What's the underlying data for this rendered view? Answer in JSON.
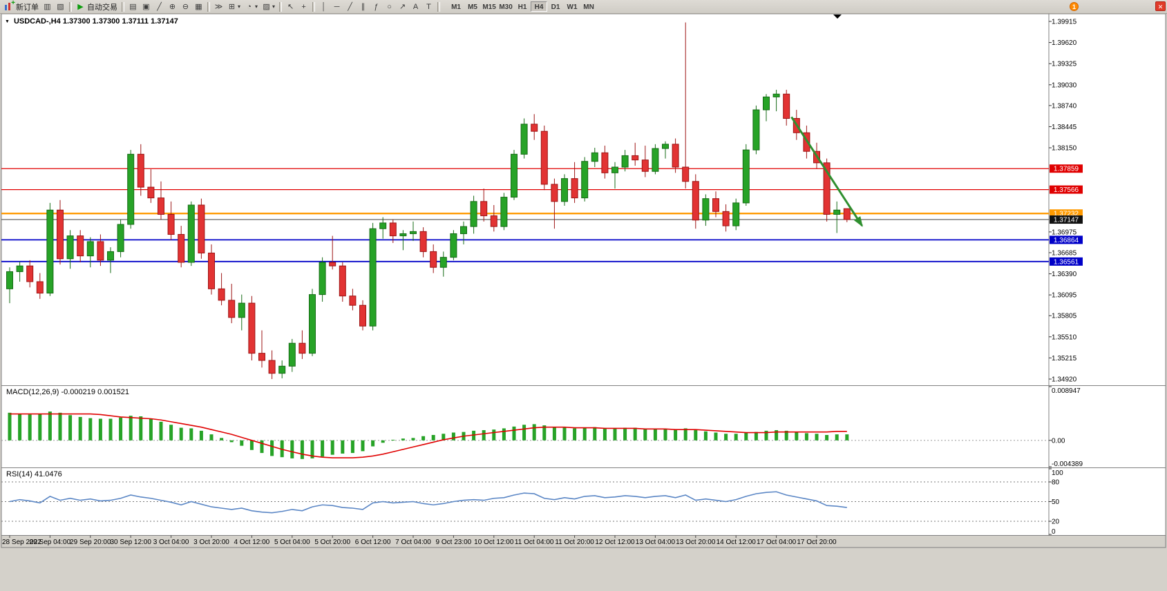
{
  "window": {
    "close_glyph": "✕"
  },
  "toolbar": {
    "new_order_plus_glyph": "+",
    "dropdown_glyph": "▾",
    "notification_badge": "1",
    "timeframes": [
      "M1",
      "M5",
      "M15",
      "M30",
      "H1",
      "H4",
      "D1",
      "W1",
      "MN"
    ],
    "active_timeframe": "H4",
    "buttons": [
      {
        "name": "new-order-button",
        "icon": "new-order",
        "label": "新订单"
      },
      {
        "name": "charts-window-button",
        "glyph": "▥"
      },
      {
        "name": "profiles-button",
        "glyph": "▧"
      },
      {
        "sep": 1
      },
      {
        "name": "auto-trading-button",
        "glyph": "▶",
        "glyph_color": "#0f9d0f",
        "label": "自动交易"
      },
      {
        "sep": 1
      },
      {
        "name": "bar-chart-button",
        "glyph": "▤"
      },
      {
        "name": "candlestick-button",
        "glyph": "▣"
      },
      {
        "name": "line-chart-button",
        "glyph": "╱"
      },
      {
        "name": "zoom-in-button",
        "glyph": "⊕"
      },
      {
        "name": "zoom-out-button",
        "glyph": "⊖"
      },
      {
        "name": "tile-windows-button",
        "glyph": "▦"
      },
      {
        "sep": 1
      },
      {
        "name": "step-forward-button",
        "glyph": "≫"
      },
      {
        "name": "indicators-button",
        "glyph": "⊞",
        "dd": 1
      },
      {
        "name": "periods-button",
        "glyph": "◔",
        "dd": 1
      },
      {
        "name": "templates-button",
        "glyph": "▨",
        "dd": 1
      },
      {
        "sep": 1
      },
      {
        "name": "cursor-button",
        "glyph": "↖"
      },
      {
        "name": "crosshair-button",
        "glyph": "+"
      },
      {
        "sep": 1
      },
      {
        "name": "vline-button",
        "glyph": "│"
      },
      {
        "name": "hline-button",
        "glyph": "─"
      },
      {
        "name": "trendline-button",
        "glyph": "╱"
      },
      {
        "name": "channel-button",
        "glyph": "∥"
      },
      {
        "name": "fibonacci-button",
        "glyph": "ƒ"
      },
      {
        "name": "shapes-button",
        "glyph": "○"
      },
      {
        "name": "arrows-button",
        "glyph": "↗"
      },
      {
        "name": "text-button",
        "glyph": "A"
      },
      {
        "name": "label-button",
        "glyph": "T"
      },
      {
        "sep": 1
      }
    ]
  },
  "chart": {
    "marker_glyph": "▼",
    "symbol_header": "USDCAD-,H4 1.37300 1.37300 1.37111 1.37147",
    "price_axis_max": 1.39915,
    "price_axis_min": 1.3492,
    "price_axis": [
      "1.39915",
      "1.39620",
      "1.39325",
      "1.39030",
      "1.38740",
      "1.38445",
      "1.38150",
      "1.36975",
      "1.36685",
      "1.36390",
      "1.36095",
      "1.35805",
      "1.35510",
      "1.35215",
      "1.34920"
    ],
    "hlines": [
      {
        "value": "1.37859",
        "color": "#e00000",
        "width": 1.2
      },
      {
        "value": "1.37566",
        "color": "#e00000",
        "width": 1.2
      },
      {
        "value": "1.37232",
        "color": "#ff9a00",
        "width": 2.4
      },
      {
        "value": "1.36864",
        "color": "#0000c8",
        "width": 1.8
      },
      {
        "value": "1.36561",
        "color": "#0000c8",
        "width": 1.8
      }
    ],
    "current_price": "1.37147",
    "colors": {
      "up_fill": "#27a327",
      "up_stroke": "#156b15",
      "down_fill": "#e23333",
      "down_stroke": "#9c1414",
      "macd_bar": "#27a327",
      "macd_signal": "#e00000",
      "rsi_line": "#5a86c5",
      "price_line": "#3c3c3c"
    },
    "arrow": {
      "from_index": 77.5,
      "from_price": 1.3858,
      "to_index": 84.5,
      "to_price": 1.3706,
      "color": "#2f8f2f"
    },
    "candles": [
      [
        1.3618,
        1.3648,
        1.3598,
        1.3642
      ],
      [
        1.3642,
        1.3656,
        1.3628,
        1.365
      ],
      [
        1.365,
        1.3658,
        1.362,
        1.3628
      ],
      [
        1.3628,
        1.364,
        1.3604,
        1.3612
      ],
      [
        1.3612,
        1.3738,
        1.3608,
        1.3728
      ],
      [
        1.3728,
        1.3742,
        1.3652,
        1.366
      ],
      [
        1.366,
        1.37,
        1.3646,
        1.3692
      ],
      [
        1.3692,
        1.37,
        1.3655,
        1.3664
      ],
      [
        1.3664,
        1.369,
        1.3648,
        1.3684
      ],
      [
        1.3684,
        1.3694,
        1.365,
        1.3658
      ],
      [
        1.3658,
        1.3676,
        1.364,
        1.367
      ],
      [
        1.367,
        1.3715,
        1.3662,
        1.3708
      ],
      [
        1.3708,
        1.3812,
        1.3702,
        1.3806
      ],
      [
        1.3806,
        1.382,
        1.3748,
        1.376
      ],
      [
        1.376,
        1.3785,
        1.3738,
        1.3745
      ],
      [
        1.3745,
        1.3768,
        1.3715,
        1.3722
      ],
      [
        1.3722,
        1.374,
        1.3686,
        1.3694
      ],
      [
        1.3694,
        1.3706,
        1.3648,
        1.3655
      ],
      [
        1.3655,
        1.374,
        1.365,
        1.3735
      ],
      [
        1.3735,
        1.3744,
        1.366,
        1.3668
      ],
      [
        1.3668,
        1.368,
        1.361,
        1.3618
      ],
      [
        1.3618,
        1.364,
        1.3595,
        1.3602
      ],
      [
        1.3602,
        1.3625,
        1.357,
        1.3578
      ],
      [
        1.3578,
        1.361,
        1.356,
        1.3598
      ],
      [
        1.3598,
        1.3608,
        1.3518,
        1.3528
      ],
      [
        1.3528,
        1.356,
        1.3508,
        1.3518
      ],
      [
        1.3518,
        1.3532,
        1.3492,
        1.35
      ],
      [
        1.35,
        1.3518,
        1.3493,
        1.351
      ],
      [
        1.351,
        1.3548,
        1.3502,
        1.3542
      ],
      [
        1.3542,
        1.356,
        1.352,
        1.3528
      ],
      [
        1.3528,
        1.3618,
        1.3524,
        1.361
      ],
      [
        1.361,
        1.3662,
        1.36,
        1.3655
      ],
      [
        1.3655,
        1.3692,
        1.3645,
        1.365
      ],
      [
        1.365,
        1.3655,
        1.36,
        1.3608
      ],
      [
        1.3608,
        1.3618,
        1.3588,
        1.3595
      ],
      [
        1.3595,
        1.3602,
        1.356,
        1.3566
      ],
      [
        1.3566,
        1.371,
        1.356,
        1.3702
      ],
      [
        1.3702,
        1.3718,
        1.3688,
        1.371
      ],
      [
        1.371,
        1.3715,
        1.3682,
        1.3692
      ],
      [
        1.3692,
        1.37,
        1.3672,
        1.3695
      ],
      [
        1.3695,
        1.3712,
        1.3685,
        1.3698
      ],
      [
        1.3698,
        1.3704,
        1.3662,
        1.367
      ],
      [
        1.367,
        1.368,
        1.364,
        1.3648
      ],
      [
        1.3648,
        1.367,
        1.3635,
        1.3662
      ],
      [
        1.3662,
        1.37,
        1.3658,
        1.3695
      ],
      [
        1.3695,
        1.3712,
        1.368,
        1.3705
      ],
      [
        1.3705,
        1.3748,
        1.3695,
        1.374
      ],
      [
        1.374,
        1.3758,
        1.3712,
        1.372
      ],
      [
        1.372,
        1.3735,
        1.3698,
        1.3705
      ],
      [
        1.3705,
        1.3752,
        1.37,
        1.3746
      ],
      [
        1.3746,
        1.3812,
        1.3742,
        1.3806
      ],
      [
        1.3806,
        1.3856,
        1.38,
        1.3848
      ],
      [
        1.3848,
        1.3862,
        1.3826,
        1.3838
      ],
      [
        1.3838,
        1.3846,
        1.3756,
        1.3764
      ],
      [
        1.3764,
        1.3772,
        1.3702,
        1.374
      ],
      [
        1.374,
        1.3778,
        1.3734,
        1.3772
      ],
      [
        1.3772,
        1.3795,
        1.3738,
        1.3745
      ],
      [
        1.3745,
        1.3802,
        1.374,
        1.3796
      ],
      [
        1.3796,
        1.3815,
        1.3788,
        1.3808
      ],
      [
        1.3808,
        1.3818,
        1.3772,
        1.378
      ],
      [
        1.378,
        1.3795,
        1.3758,
        1.3788
      ],
      [
        1.3788,
        1.3812,
        1.3782,
        1.3804
      ],
      [
        1.3804,
        1.3822,
        1.379,
        1.3798
      ],
      [
        1.3798,
        1.3818,
        1.3774,
        1.3782
      ],
      [
        1.3782,
        1.382,
        1.3778,
        1.3814
      ],
      [
        1.3814,
        1.3824,
        1.38,
        1.382
      ],
      [
        1.382,
        1.3828,
        1.378,
        1.3788
      ],
      [
        1.3788,
        1.399,
        1.3758,
        1.3768
      ],
      [
        1.3768,
        1.3778,
        1.3702,
        1.3714
      ],
      [
        1.3714,
        1.375,
        1.3706,
        1.3744
      ],
      [
        1.3744,
        1.3754,
        1.3718,
        1.3726
      ],
      [
        1.3726,
        1.3736,
        1.3698,
        1.3706
      ],
      [
        1.3706,
        1.3744,
        1.37,
        1.3738
      ],
      [
        1.3738,
        1.382,
        1.3734,
        1.3812
      ],
      [
        1.3812,
        1.3874,
        1.3806,
        1.3868
      ],
      [
        1.3868,
        1.389,
        1.3852,
        1.3886
      ],
      [
        1.3886,
        1.3896,
        1.3866,
        1.389
      ],
      [
        1.389,
        1.3896,
        1.3846,
        1.3856
      ],
      [
        1.3856,
        1.3868,
        1.3826,
        1.3836
      ],
      [
        1.3836,
        1.3846,
        1.38,
        1.381
      ],
      [
        1.381,
        1.3822,
        1.3786,
        1.3794
      ],
      [
        1.3794,
        1.38,
        1.3712,
        1.3722
      ],
      [
        1.3722,
        1.374,
        1.3696,
        1.3728
      ],
      [
        1.373,
        1.373,
        1.37111,
        1.37147
      ]
    ]
  },
  "macd": {
    "header": "MACD(12,26,9) -0.000219 0.001521",
    "max": 0.008947,
    "min": -0.004389,
    "axis": [
      "0.008947",
      "0.00",
      "-0.004389"
    ],
    "histogram": [
      0.0046,
      0.0044,
      0.0043,
      0.0044,
      0.0048,
      0.0046,
      0.0042,
      0.0039,
      0.0037,
      0.0036,
      0.0036,
      0.0038,
      0.0041,
      0.004,
      0.0036,
      0.0031,
      0.0026,
      0.0021,
      0.002,
      0.0016,
      0.001,
      0.0004,
      -0.0003,
      -0.0009,
      -0.0016,
      -0.0021,
      -0.0026,
      -0.0028,
      -0.003,
      -0.0031,
      -0.003,
      -0.0027,
      -0.0024,
      -0.0022,
      -0.0021,
      -0.0018,
      -0.001,
      -0.0004,
      0.0001,
      0.0003,
      0.0004,
      0.0007,
      0.0009,
      0.0011,
      0.0013,
      0.0014,
      0.0016,
      0.0017,
      0.0018,
      0.002,
      0.0023,
      0.0026,
      0.0027,
      0.0025,
      0.0022,
      0.0021,
      0.002,
      0.0021,
      0.0022,
      0.002,
      0.002,
      0.0021,
      0.0021,
      0.0019,
      0.0019,
      0.0019,
      0.0018,
      0.002,
      0.0017,
      0.0015,
      0.0013,
      0.0011,
      0.0011,
      0.0013,
      0.0014,
      0.0016,
      0.0017,
      0.0016,
      0.0014,
      0.0012,
      0.0011,
      0.0009,
      0.001,
      0.001
    ],
    "signal": [
      0.0044,
      0.0044,
      0.0044,
      0.0044,
      0.0044,
      0.0044,
      0.0044,
      0.0044,
      0.0044,
      0.0043,
      0.0041,
      0.0039,
      0.0038,
      0.0037,
      0.0036,
      0.0034,
      0.0031,
      0.0028,
      0.0025,
      0.0022,
      0.0018,
      0.0014,
      0.001,
      0.0005,
      0.0,
      -0.0005,
      -0.001,
      -0.0015,
      -0.0019,
      -0.0023,
      -0.0026,
      -0.0028,
      -0.0029,
      -0.0029,
      -0.0029,
      -0.0028,
      -0.0026,
      -0.0023,
      -0.0019,
      -0.0015,
      -0.0011,
      -0.0007,
      -0.0003,
      0.0001,
      0.0004,
      0.0007,
      0.0009,
      0.0011,
      0.0013,
      0.0015,
      0.0017,
      0.0019,
      0.0021,
      0.0022,
      0.0022,
      0.0022,
      0.0021,
      0.0021,
      0.0021,
      0.002,
      0.002,
      0.002,
      0.002,
      0.0019,
      0.0019,
      0.0019,
      0.0018,
      0.0018,
      0.0018,
      0.0017,
      0.0016,
      0.0015,
      0.0014,
      0.0013,
      0.0013,
      0.0013,
      0.0014,
      0.0014,
      0.0014,
      0.0014,
      0.0014,
      0.0014,
      0.0015,
      0.0015
    ]
  },
  "rsi": {
    "header": "RSI(14) 41.0476",
    "axis": [
      "100",
      "80",
      "50",
      "20",
      "0"
    ],
    "levels": [
      80,
      50,
      20
    ],
    "values": [
      50,
      53,
      51,
      48,
      58,
      52,
      55,
      52,
      54,
      51,
      52,
      55,
      60,
      57,
      55,
      52,
      49,
      45,
      50,
      46,
      42,
      40,
      38,
      40,
      36,
      34,
      33,
      35,
      38,
      36,
      42,
      45,
      44,
      41,
      40,
      38,
      48,
      50,
      48,
      49,
      50,
      47,
      45,
      47,
      50,
      52,
      53,
      52,
      55,
      56,
      60,
      63,
      62,
      55,
      53,
      56,
      54,
      58,
      59,
      56,
      57,
      59,
      58,
      56,
      58,
      59,
      56,
      60,
      52,
      54,
      52,
      50,
      53,
      58,
      62,
      64,
      65,
      60,
      57,
      54,
      51,
      44,
      43,
      41
    ]
  },
  "time_axis": [
    "28 Sep 2022",
    "29 Sep 04:00",
    "29 Sep 20:00",
    "30 Sep 12:00",
    "3 Oct 04:00",
    "3 Oct 20:00",
    "4 Oct 12:00",
    "5 Oct 04:00",
    "5 Oct 20:00",
    "6 Oct 12:00",
    "7 Oct 04:00",
    "9 Oct 23:00",
    "10 Oct 12:00",
    "11 Oct 04:00",
    "11 Oct 20:00",
    "12 Oct 12:00",
    "13 Oct 04:00",
    "13 Oct 20:00",
    "14 Oct 12:00",
    "17 Oct 04:00",
    "17 Oct 20:00"
  ]
}
